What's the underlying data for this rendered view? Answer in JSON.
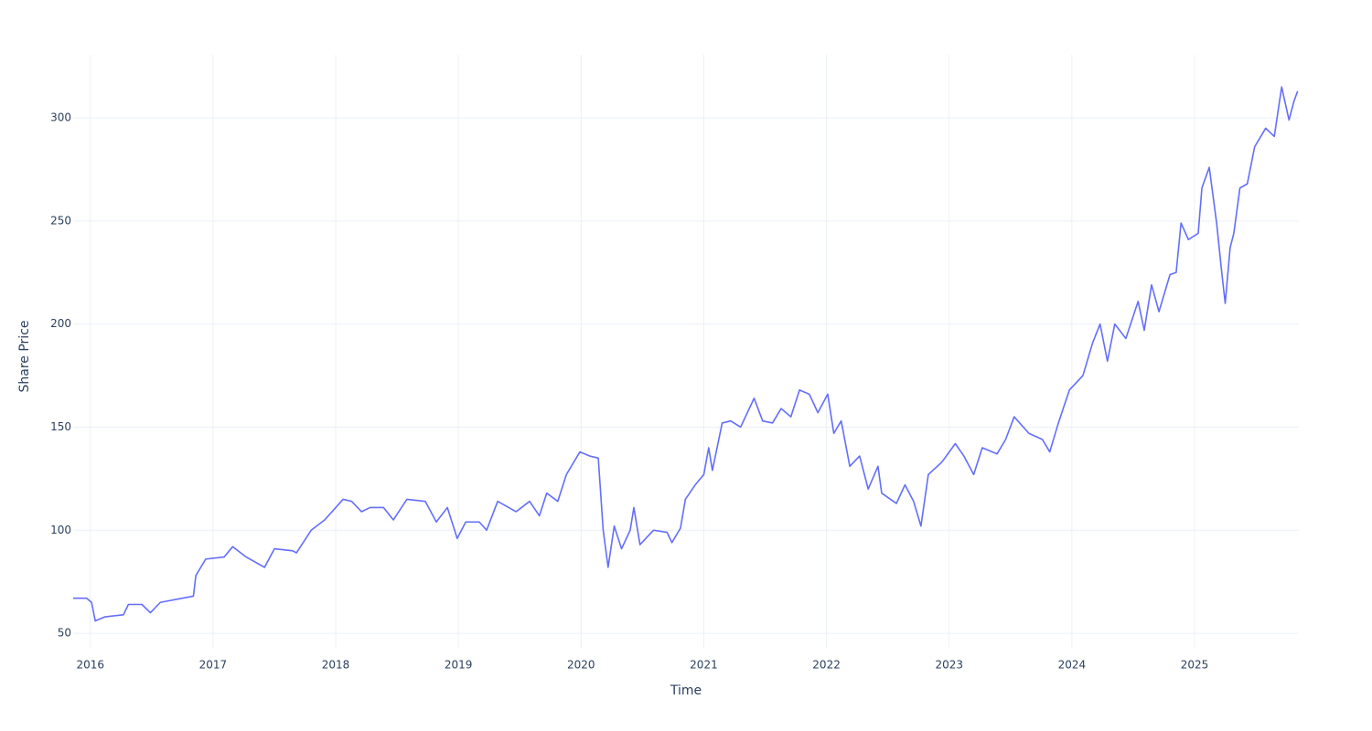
{
  "chart_data": {
    "type": "line",
    "x_label": "Time",
    "y_label": "Share Price",
    "x": [
      2015.86,
      2015.97,
      2016.01,
      2016.04,
      2016.12,
      2016.27,
      2016.31,
      2016.42,
      2016.49,
      2016.57,
      2016.75,
      2016.84,
      2016.86,
      2016.94,
      2017.09,
      2017.16,
      2017.27,
      2017.42,
      2017.5,
      2017.65,
      2017.68,
      2017.8,
      2017.91,
      2018.06,
      2018.13,
      2018.21,
      2018.28,
      2018.39,
      2018.47,
      2018.58,
      2018.73,
      2018.82,
      2018.91,
      2018.99,
      2019.06,
      2019.17,
      2019.23,
      2019.32,
      2019.47,
      2019.58,
      2019.66,
      2019.72,
      2019.81,
      2019.88,
      2019.99,
      2020.07,
      2020.14,
      2020.18,
      2020.22,
      2020.27,
      2020.33,
      2020.4,
      2020.43,
      2020.48,
      2020.59,
      2020.7,
      2020.74,
      2020.81,
      2020.85,
      2020.93,
      2021.0,
      2021.04,
      2021.07,
      2021.15,
      2021.22,
      2021.3,
      2021.41,
      2021.48,
      2021.56,
      2021.63,
      2021.71,
      2021.78,
      2021.86,
      2021.93,
      2022.01,
      2022.06,
      2022.12,
      2022.19,
      2022.27,
      2022.34,
      2022.42,
      2022.45,
      2022.57,
      2022.64,
      2022.71,
      2022.77,
      2022.83,
      2022.94,
      2023.05,
      2023.12,
      2023.2,
      2023.27,
      2023.39,
      2023.46,
      2023.53,
      2023.65,
      2023.76,
      2023.82,
      2023.89,
      2023.98,
      2024.09,
      2024.17,
      2024.23,
      2024.29,
      2024.35,
      2024.44,
      2024.54,
      2024.59,
      2024.65,
      2024.71,
      2024.8,
      2024.85,
      2024.89,
      2024.95,
      2025.03,
      2025.06,
      2025.12,
      2025.18,
      2025.22,
      2025.25,
      2025.29,
      2025.32,
      2025.37,
      2025.43,
      2025.49,
      2025.58,
      2025.65,
      2025.71,
      2025.77,
      2025.81,
      2025.84
    ],
    "values": [
      67,
      67,
      65,
      56,
      58,
      59,
      64,
      64,
      60,
      65,
      67,
      68,
      78,
      86,
      87,
      92,
      87,
      82,
      91,
      90,
      89,
      100,
      105,
      115,
      114,
      109,
      111,
      111,
      105,
      115,
      114,
      104,
      111,
      96,
      104,
      104,
      100,
      114,
      109,
      114,
      107,
      118,
      114,
      127,
      138,
      136,
      135,
      100,
      82,
      102,
      91,
      100,
      111,
      93,
      100,
      99,
      94,
      101,
      115,
      122,
      127,
      140,
      129,
      152,
      153,
      150,
      164,
      153,
      152,
      159,
      155,
      168,
      166,
      157,
      166,
      147,
      153,
      131,
      136,
      120,
      131,
      118,
      113,
      122,
      114,
      102,
      127,
      133,
      142,
      136,
      127,
      140,
      137,
      144,
      155,
      147,
      144,
      138,
      152,
      168,
      175,
      191,
      200,
      182,
      200,
      193,
      211,
      197,
      219,
      206,
      224,
      225,
      249,
      241,
      244,
      266,
      276,
      249,
      226,
      210,
      237,
      244,
      266,
      268,
      286,
      295,
      291,
      315,
      299,
      308,
      313
    ],
    "color": "#636efa",
    "xlim": [
      2015.86,
      2025.85
    ],
    "xticks": [
      2016,
      2017,
      2018,
      2019,
      2020,
      2021,
      2022,
      2023,
      2024,
      2025
    ],
    "ylim": [
      42.5,
      330.6
    ],
    "yticks": [
      50,
      100,
      150,
      200,
      250,
      300
    ],
    "grid": true
  }
}
